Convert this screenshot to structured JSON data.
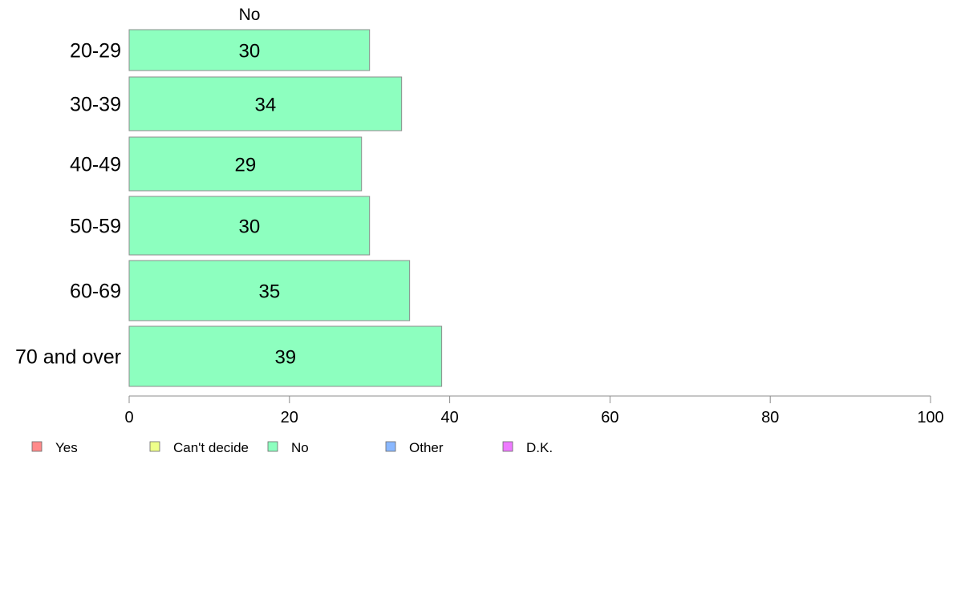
{
  "chart_data": {
    "type": "bar",
    "orientation": "horizontal",
    "column_title": "No",
    "categories": [
      "20-29",
      "30-39",
      "40-49",
      "50-59",
      "60-69",
      "70 and over"
    ],
    "series": [
      {
        "name": "No",
        "values": [
          30,
          34,
          29,
          30,
          35,
          39
        ],
        "color": "#8dffbf"
      }
    ],
    "value_labels": [
      "30",
      "34",
      "29",
      "30",
      "35",
      "39"
    ],
    "xlim": [
      0,
      100
    ],
    "xticks": [
      0,
      20,
      40,
      60,
      80,
      100
    ],
    "xtick_labels": [
      "0",
      "20",
      "40",
      "60",
      "80",
      "100"
    ],
    "grid": false,
    "legend": {
      "placement": "bottom",
      "items": [
        {
          "label": "Yes",
          "color": "#ff8a8a"
        },
        {
          "label": "Can't decide",
          "color": "#eeff8a"
        },
        {
          "label": "No",
          "color": "#8dffbf"
        },
        {
          "label": "Other",
          "color": "#8ab8ff"
        },
        {
          "label": "D.K.",
          "color": "#ee7aff"
        }
      ]
    }
  }
}
